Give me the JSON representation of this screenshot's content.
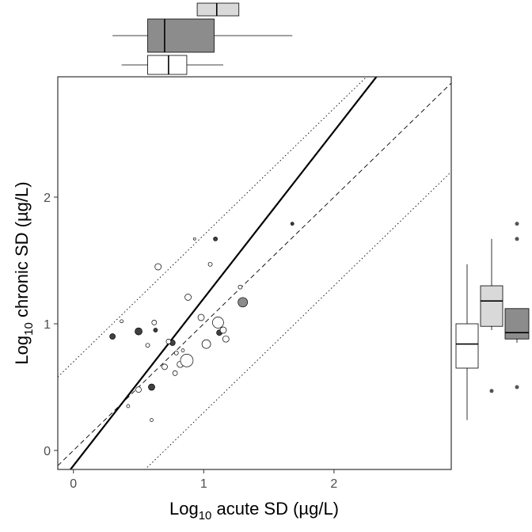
{
  "chart_data": {
    "type": "scatter",
    "title": "",
    "xlabel_parts": {
      "prefix": "Log",
      "subscript": "10",
      "suffix": " acute SD (µg/L)"
    },
    "ylabel_parts": {
      "prefix": "Log",
      "subscript": "10",
      "suffix": " chronic SD (µg/L)"
    },
    "xlim": [
      -0.12,
      2.9
    ],
    "ylim": [
      -0.15,
      2.95
    ],
    "x_ticks": [
      0,
      1,
      2
    ],
    "y_ticks": [
      0,
      1,
      2
    ],
    "grid": false,
    "lines": {
      "regression": {
        "slope": 1.32,
        "intercept": -0.12,
        "style": "solid"
      },
      "identity": {
        "slope": 1.0,
        "intercept": 0.0,
        "style": "dashed"
      },
      "upper_bound": {
        "slope": 1.0,
        "intercept": 0.7,
        "style": "dotted"
      },
      "lower_bound": {
        "slope": 1.0,
        "intercept": -0.7,
        "style": "dotted"
      }
    },
    "group_colors": {
      "white": "#ffffff",
      "light": "#d9d9d9",
      "dark": "#8c8c8c",
      "black": "#404040"
    },
    "points": [
      {
        "x": 0.3,
        "y": 0.9,
        "g": "black",
        "s": 3.5
      },
      {
        "x": 0.5,
        "y": 0.94,
        "g": "black",
        "s": 4.5
      },
      {
        "x": 0.6,
        "y": 0.5,
        "g": "black",
        "s": 4
      },
      {
        "x": 0.63,
        "y": 0.95,
        "g": "black",
        "s": 2.5
      },
      {
        "x": 0.76,
        "y": 0.85,
        "g": "black",
        "s": 3.5
      },
      {
        "x": 1.09,
        "y": 1.67,
        "g": "black",
        "s": 2.5
      },
      {
        "x": 1.12,
        "y": 0.93,
        "g": "black",
        "s": 3.5
      },
      {
        "x": 1.68,
        "y": 1.79,
        "g": "black",
        "s": 2
      },
      {
        "x": 1.3,
        "y": 1.17,
        "g": "dark",
        "s": 6
      },
      {
        "x": 0.37,
        "y": 1.02,
        "g": "white",
        "s": 2
      },
      {
        "x": 0.42,
        "y": 0.35,
        "g": "white",
        "s": 2
      },
      {
        "x": 0.5,
        "y": 0.48,
        "g": "white",
        "s": 3.5
      },
      {
        "x": 0.57,
        "y": 0.83,
        "g": "white",
        "s": 2.5
      },
      {
        "x": 0.6,
        "y": 0.24,
        "g": "white",
        "s": 2
      },
      {
        "x": 0.62,
        "y": 1.01,
        "g": "white",
        "s": 3
      },
      {
        "x": 0.65,
        "y": 1.45,
        "g": "white",
        "s": 4
      },
      {
        "x": 0.7,
        "y": 0.66,
        "g": "white",
        "s": 3.5
      },
      {
        "x": 0.73,
        "y": 0.86,
        "g": "white",
        "s": 3
      },
      {
        "x": 0.78,
        "y": 0.61,
        "g": "white",
        "s": 3
      },
      {
        "x": 0.79,
        "y": 0.77,
        "g": "white",
        "s": 2.5
      },
      {
        "x": 0.82,
        "y": 0.68,
        "g": "white",
        "s": 4
      },
      {
        "x": 0.84,
        "y": 0.79,
        "g": "white",
        "s": 2
      },
      {
        "x": 0.87,
        "y": 0.71,
        "g": "white",
        "s": 8
      },
      {
        "x": 0.88,
        "y": 1.21,
        "g": "white",
        "s": 4
      },
      {
        "x": 0.93,
        "y": 1.67,
        "g": "white",
        "s": 1.5
      },
      {
        "x": 0.98,
        "y": 1.05,
        "g": "white",
        "s": 4
      },
      {
        "x": 1.02,
        "y": 0.84,
        "g": "white",
        "s": 5.5
      },
      {
        "x": 1.05,
        "y": 1.47,
        "g": "white",
        "s": 2.5
      },
      {
        "x": 1.11,
        "y": 1.01,
        "g": "white",
        "s": 7
      },
      {
        "x": 1.15,
        "y": 0.95,
        "g": "white",
        "s": 4
      },
      {
        "x": 1.17,
        "y": 0.88,
        "g": "white",
        "s": 4
      },
      {
        "x": 1.28,
        "y": 1.29,
        "g": "white",
        "s": 2.5
      }
    ],
    "top_boxplots": [
      {
        "group": "light",
        "whisker_low": 0.95,
        "q1": 0.95,
        "median": 1.1,
        "q3": 1.27,
        "whisker_high": 1.27
      },
      {
        "group": "dark",
        "whisker_low": 0.3,
        "q1": 0.57,
        "median": 0.7,
        "q3": 1.08,
        "whisker_high": 1.68
      },
      {
        "group": "white",
        "whisker_low": 0.37,
        "q1": 0.57,
        "median": 0.73,
        "q3": 0.87,
        "whisker_high": 1.15
      }
    ],
    "right_boxplots": [
      {
        "group": "white",
        "whisker_low": 0.24,
        "q1": 0.65,
        "median": 0.84,
        "q3": 1.0,
        "whisker_high": 1.47,
        "outliers": []
      },
      {
        "group": "light",
        "whisker_low": 0.95,
        "q1": 0.98,
        "median": 1.18,
        "q3": 1.3,
        "whisker_high": 1.67,
        "outliers": [
          0.47
        ]
      },
      {
        "group": "dark",
        "whisker_low": 0.85,
        "q1": 0.88,
        "median": 0.93,
        "q3": 1.12,
        "whisker_high": 1.12,
        "outliers": [
          1.67,
          1.79,
          0.5
        ]
      }
    ]
  }
}
